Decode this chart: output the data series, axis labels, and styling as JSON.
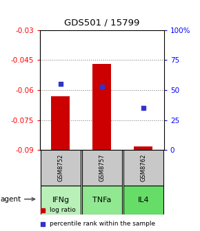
{
  "title": "GDS501 / 15799",
  "samples": [
    "GSM8752",
    "GSM8757",
    "GSM8762"
  ],
  "agents": [
    "IFNg",
    "TNFa",
    "IL4"
  ],
  "log_ratios": [
    -0.063,
    -0.047,
    -0.088
  ],
  "percentile_ranks": [
    55,
    53,
    35
  ],
  "ylim_left": [
    -0.09,
    -0.03
  ],
  "ylim_right": [
    0,
    100
  ],
  "yticks_left": [
    -0.09,
    -0.075,
    -0.06,
    -0.045,
    -0.03
  ],
  "yticks_right": [
    0,
    25,
    50,
    75,
    100
  ],
  "bar_color": "#cc0000",
  "dot_color": "#3333cc",
  "bar_baseline": -0.09,
  "sample_bg": "#c8c8c8",
  "agent_colors": [
    "#b8f0b8",
    "#90e890",
    "#66dd66"
  ],
  "legend_bar_color": "#cc0000",
  "legend_dot_color": "#3333cc"
}
